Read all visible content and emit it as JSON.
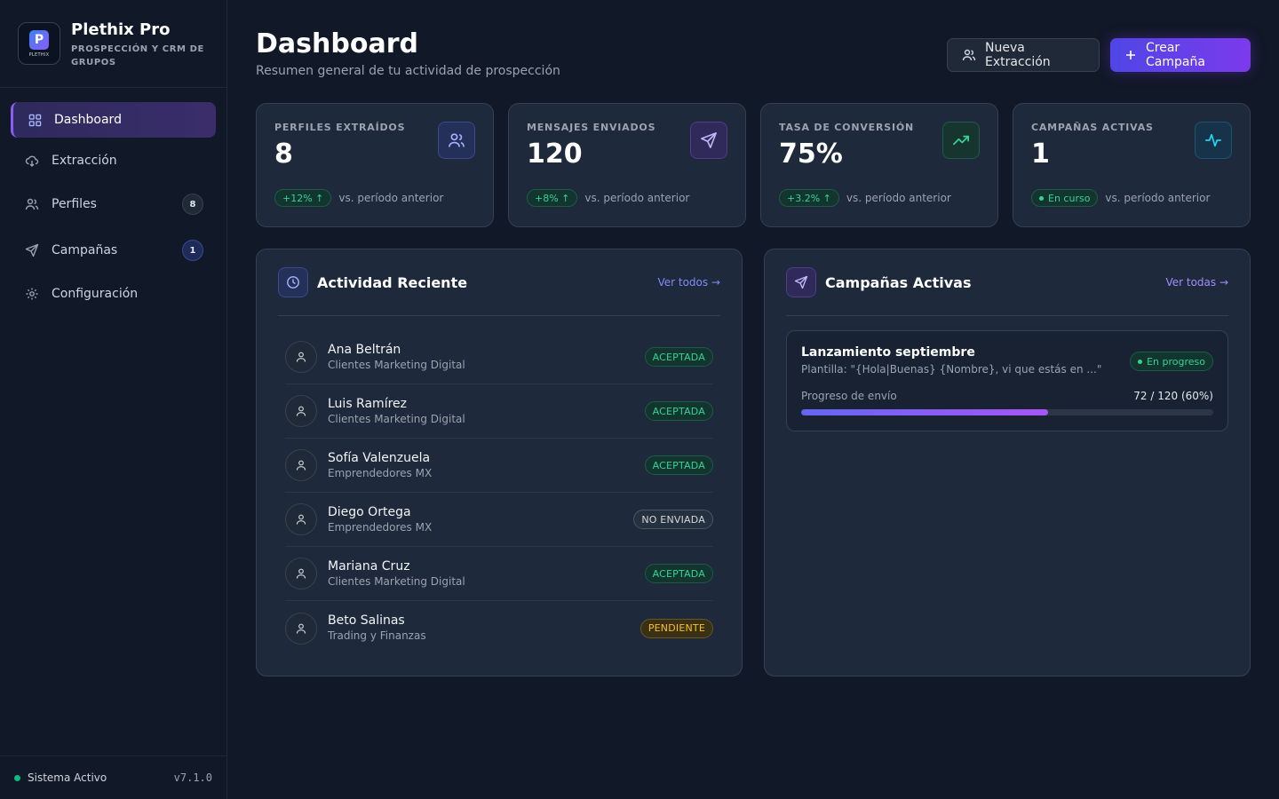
{
  "brand": {
    "title": "Plethix Pro",
    "subtitle": "PROSPECCIÓN Y CRM DE GRUPOS",
    "logo_text": "PLETHIX"
  },
  "sidebar": {
    "items": [
      {
        "label": "Dashboard",
        "icon": "grid-icon",
        "active": true
      },
      {
        "label": "Extracción",
        "icon": "download-cloud-icon"
      },
      {
        "label": "Perfiles",
        "icon": "users-icon",
        "badge": "8"
      },
      {
        "label": "Campañas",
        "icon": "send-icon",
        "badge": "1"
      },
      {
        "label": "Configuración",
        "icon": "gear-icon"
      }
    ],
    "footer": {
      "status": "Sistema Activo",
      "version": "v7.1.0"
    }
  },
  "header": {
    "title": "Dashboard",
    "subtitle": "Resumen general de tu actividad de prospección",
    "btn_extract": "Nueva Extracción",
    "btn_create": "Crear Campaña"
  },
  "stats": [
    {
      "label": "PERFILES EXTRAÍDOS",
      "value": "8",
      "delta": "+12% ↑",
      "note": "vs. período anterior",
      "icon": "users-icon"
    },
    {
      "label": "MENSAJES ENVIADOS",
      "value": "120",
      "delta": "+8% ↑",
      "note": "vs. período anterior",
      "icon": "send-icon"
    },
    {
      "label": "TASA DE CONVERSIÓN",
      "value": "75%",
      "delta": "+3.2% ↑",
      "note": "vs. período anterior",
      "icon": "trending-up-icon"
    },
    {
      "label": "CAMPAÑAS ACTIVAS",
      "value": "1",
      "delta": "En curso",
      "note": "vs. período anterior",
      "icon": "activity-icon"
    }
  ],
  "activity": {
    "title": "Actividad Reciente",
    "link": "Ver todos →",
    "rows": [
      {
        "name": "Ana Beltrán",
        "group": "Clientes Marketing Digital",
        "status": "ACEPTADA",
        "kind": "accepted"
      },
      {
        "name": "Luis Ramírez",
        "group": "Clientes Marketing Digital",
        "status": "ACEPTADA",
        "kind": "accepted"
      },
      {
        "name": "Sofía Valenzuela",
        "group": "Emprendedores MX",
        "status": "ACEPTADA",
        "kind": "accepted"
      },
      {
        "name": "Diego Ortega",
        "group": "Emprendedores MX",
        "status": "NO ENVIADA",
        "kind": "notsent"
      },
      {
        "name": "Mariana Cruz",
        "group": "Clientes Marketing Digital",
        "status": "ACEPTADA",
        "kind": "accepted"
      },
      {
        "name": "Beto Salinas",
        "group": "Trading y Finanzas",
        "status": "PENDIENTE",
        "kind": "pending"
      }
    ]
  },
  "campaigns": {
    "title": "Campañas Activas",
    "link": "Ver todas →",
    "items": [
      {
        "name": "Lanzamiento septiembre",
        "template": "Plantilla: \"{Hola|Buenas} {Nombre}, vi que estás en ...\"",
        "badge": "En progreso",
        "progress_label": "Progreso de envío",
        "progress_text": "72 / 120 (60%)",
        "progress": 0.6
      }
    ]
  },
  "colors": {
    "accent": "#7c3aed",
    "success": "#34d399",
    "warning": "#fbbf24"
  }
}
